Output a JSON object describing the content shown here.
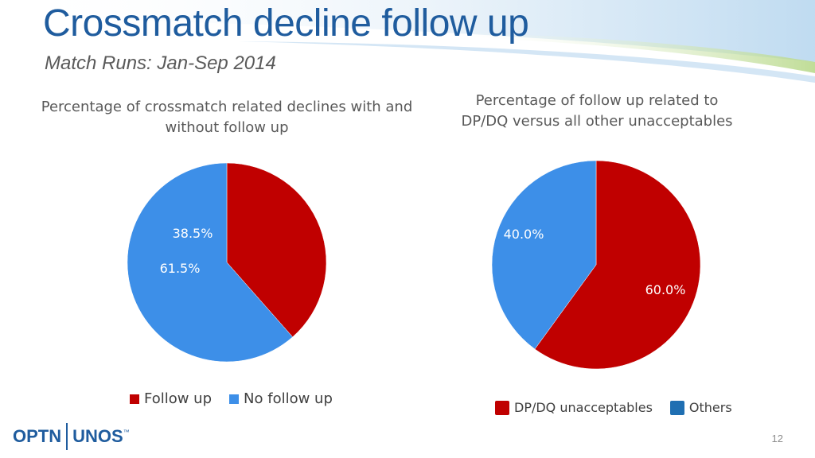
{
  "slide": {
    "title": "Crossmatch decline follow up",
    "subtitle": "Match Runs: Jan-Sep 2014",
    "slide_number": "12"
  },
  "logo": {
    "left": "OPTN",
    "right": "UNOS",
    "mark": "™"
  },
  "colors": {
    "red": "#c00000",
    "blue": "#3d8fe8",
    "blue_dark": "#1f6fb2",
    "title_blue": "#1f5c9e"
  },
  "chart_data": [
    {
      "type": "pie",
      "title": "Percentage of crossmatch related declines with and without follow up",
      "title_lines": [
        "Percentage of crossmatch related declines with and",
        "without follow up"
      ],
      "slices": [
        {
          "label": "Follow up",
          "value": 38.5,
          "display": "38.5%",
          "color": "#c00000",
          "label_color": "#ffffff"
        },
        {
          "label": "No follow up",
          "value": 61.5,
          "display": "61.5%",
          "color": "#3d8fe8",
          "label_color": "#ffffff"
        }
      ],
      "legend": "bottom"
    },
    {
      "type": "pie",
      "title": "Percentage of follow up related to DP/DQ versus all other unacceptables",
      "title_lines": [
        "Percentage of follow up related to",
        "DP/DQ versus all other unacceptables"
      ],
      "slices": [
        {
          "label": "DP/DQ unacceptables",
          "value": 60.0,
          "display": "60.0%",
          "color": "#c00000",
          "label_color": "#ffffff"
        },
        {
          "label": "Others",
          "value": 40.0,
          "display": "40.0%",
          "color": "#3d8fe8",
          "legend_color": "#1f6fb2",
          "label_color": "#ffffff"
        }
      ],
      "legend": "bottom"
    }
  ]
}
